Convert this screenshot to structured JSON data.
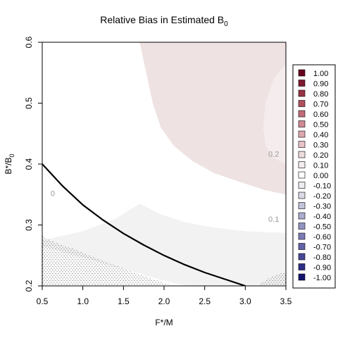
{
  "chart_data": {
    "type": "heatmap",
    "title": "Relative Bias in Estimated B",
    "title_subscript": "0",
    "xlabel": "F*/M",
    "ylabel": "B*/B",
    "ylabel_subscript": "0",
    "xlim": [
      0.5,
      3.5
    ],
    "ylim": [
      0.2,
      0.6
    ],
    "x_ticks": [
      0.5,
      1.0,
      1.5,
      2.0,
      2.5,
      3.0,
      3.5
    ],
    "x_tick_labels": [
      "0.5",
      "1.0",
      "1.5",
      "2.0",
      "2.5",
      "3.0",
      "3.5"
    ],
    "y_ticks": [
      0.2,
      0.3,
      0.4,
      0.5,
      0.6
    ],
    "y_tick_labels": [
      "0.2",
      "0.3",
      "0.4",
      "0.5",
      "0.6"
    ],
    "legend": {
      "placement": "right",
      "entries": [
        {
          "label": "1.00",
          "color": "#67001F"
        },
        {
          "label": "0.90",
          "color": "#7F1A30"
        },
        {
          "label": "0.80",
          "color": "#973546"
        },
        {
          "label": "0.70",
          "color": "#AF505E"
        },
        {
          "label": "0.60",
          "color": "#C26C78"
        },
        {
          "label": "0.50",
          "color": "#D08A93"
        },
        {
          "label": "0.40",
          "color": "#DCA7AD"
        },
        {
          "label": "0.30",
          "color": "#E6C3C6"
        },
        {
          "label": "0.20",
          "color": "#EEDBDC"
        },
        {
          "label": "0.10",
          "color": "#F4EDED"
        },
        {
          "label": "0.00",
          "color": "#FFFFFF"
        },
        {
          "label": "-0.10",
          "color": "#EDEDF1"
        },
        {
          "label": "-0.20",
          "color": "#DADAE6"
        },
        {
          "label": "-0.30",
          "color": "#C4C4DA"
        },
        {
          "label": "-0.40",
          "color": "#ACACCE"
        },
        {
          "label": "-0.50",
          "color": "#9494C2"
        },
        {
          "label": "-0.60",
          "color": "#7B7BB6"
        },
        {
          "label": "-0.70",
          "color": "#6262A8"
        },
        {
          "label": "-0.80",
          "color": "#484898"
        },
        {
          "label": "-0.90",
          "color": "#2E2E86"
        },
        {
          "label": "-1.00",
          "color": "#15156F"
        }
      ]
    },
    "regions": [
      {
        "level": "0.1",
        "color": "#F2F2F2"
      },
      {
        "level": "0.2",
        "color": "#EFE2E2"
      }
    ],
    "contour_labels": [
      {
        "text": "0",
        "x": 0.63,
        "y": 0.352
      },
      {
        "text": "0.1",
        "x": 3.35,
        "y": 0.31
      },
      {
        "text": "0.2",
        "x": 3.35,
        "y": 0.417
      }
    ],
    "reference_curve": {
      "x": [
        0.5,
        0.75,
        1.0,
        1.25,
        1.5,
        1.75,
        2.0,
        2.25,
        2.5,
        2.75,
        3.0
      ],
      "y": [
        0.4,
        0.364,
        0.333,
        0.308,
        0.286,
        0.267,
        0.25,
        0.235,
        0.222,
        0.211,
        0.2
      ]
    },
    "boundary_01": {
      "x": [
        0.85,
        0.95,
        1.05,
        1.12,
        1.18,
        1.25,
        1.35,
        1.5,
        1.7,
        1.95,
        2.25,
        2.6,
        3.0,
        3.3,
        3.5
      ],
      "y": [
        0.6,
        0.585,
        0.55,
        0.5,
        0.45,
        0.41,
        0.38,
        0.355,
        0.335,
        0.318,
        0.305,
        0.296,
        0.29,
        0.288,
        0.287
      ]
    },
    "boundary_02": {
      "x": [
        1.7,
        1.78,
        1.86,
        1.96,
        2.12,
        2.35,
        2.62,
        2.95,
        3.25,
        3.5
      ],
      "y": [
        0.6,
        0.55,
        0.5,
        0.46,
        0.43,
        0.405,
        0.385,
        0.37,
        0.357,
        0.35
      ]
    },
    "boundary_0_lower": {
      "x": [
        0.5,
        0.7,
        0.9,
        1.1,
        1.3,
        1.5,
        1.7,
        1.9,
        2.1,
        2.3
      ],
      "y": [
        0.265,
        0.258,
        0.25,
        0.243,
        0.235,
        0.228,
        0.22,
        0.212,
        0.205,
        0.2
      ]
    },
    "inner_white_region": {
      "x": [
        3.5,
        3.35,
        3.25,
        3.22,
        3.25,
        3.35,
        3.5
      ],
      "y": [
        0.565,
        0.54,
        0.5,
        0.46,
        0.43,
        0.41,
        0.4
      ]
    },
    "stipple_regions": [
      {
        "x": [
          0.5,
          0.5,
          0.6,
          0.75,
          0.9,
          1.05,
          1.2,
          1.35,
          1.5,
          1.65,
          1.8,
          1.95,
          2.1,
          2.25
        ],
        "y": [
          0.2,
          0.282,
          0.275,
          0.267,
          0.26,
          0.252,
          0.244,
          0.236,
          0.229,
          0.221,
          0.214,
          0.207,
          0.201,
          0.2
        ]
      },
      {
        "x": [
          3.15,
          3.25,
          3.35,
          3.45,
          3.5,
          3.5
        ],
        "y": [
          0.2,
          0.21,
          0.216,
          0.221,
          0.222,
          0.2
        ]
      }
    ]
  }
}
